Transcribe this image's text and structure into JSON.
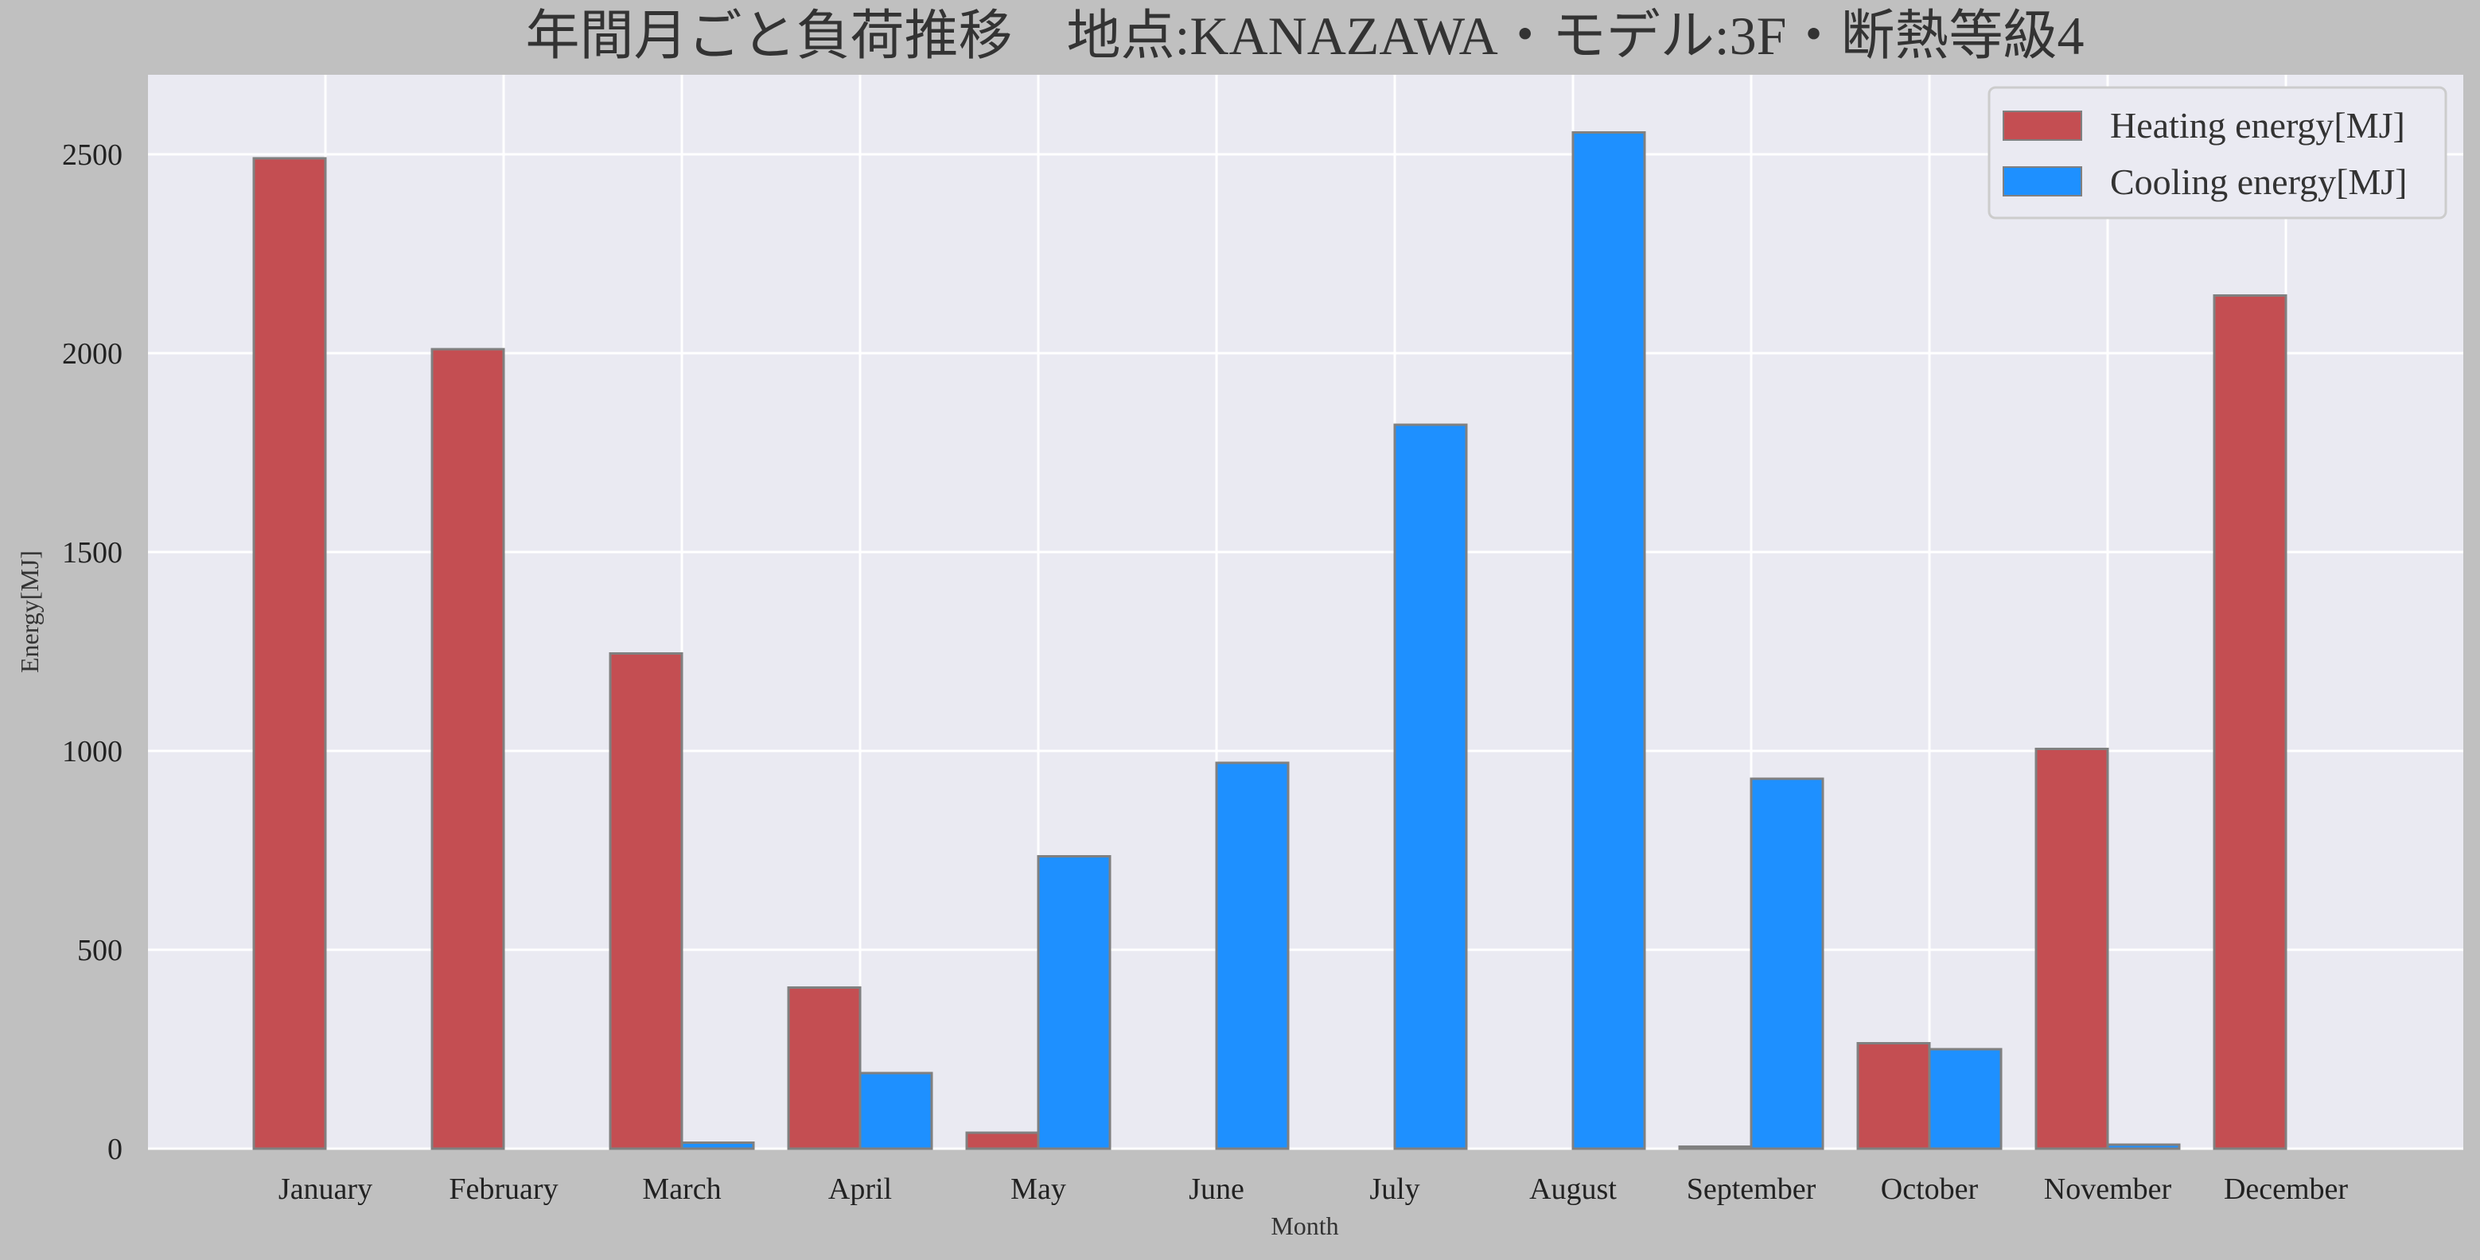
{
  "chart_data": {
    "type": "bar",
    "title": "年間月ごと負荷推移　地点:KANAZAWA・モデル:3F・断熱等級4",
    "xlabel": "Month",
    "ylabel": "Energy[MJ]",
    "categories": [
      "January",
      "February",
      "March",
      "April",
      "May",
      "June",
      "July",
      "August",
      "September",
      "October",
      "November",
      "December"
    ],
    "series": [
      {
        "name": "Heating energy[MJ]",
        "color": "#c44e52",
        "values": [
          2490,
          2010,
          1245,
          405,
          40,
          0,
          0,
          0,
          5,
          265,
          1005,
          2145
        ]
      },
      {
        "name": "Cooling energy[MJ]",
        "color": "#1e90ff",
        "values": [
          0,
          0,
          15,
          190,
          735,
          970,
          1820,
          2555,
          930,
          250,
          10,
          0
        ]
      }
    ],
    "ylim": [
      0,
      2700
    ],
    "yticks": [
      0,
      500,
      1000,
      1500,
      2000,
      2500
    ],
    "grid": true,
    "legend_position": "top-right",
    "plot_background": "#eaeaf2",
    "bar_edge_color": "#808080"
  }
}
